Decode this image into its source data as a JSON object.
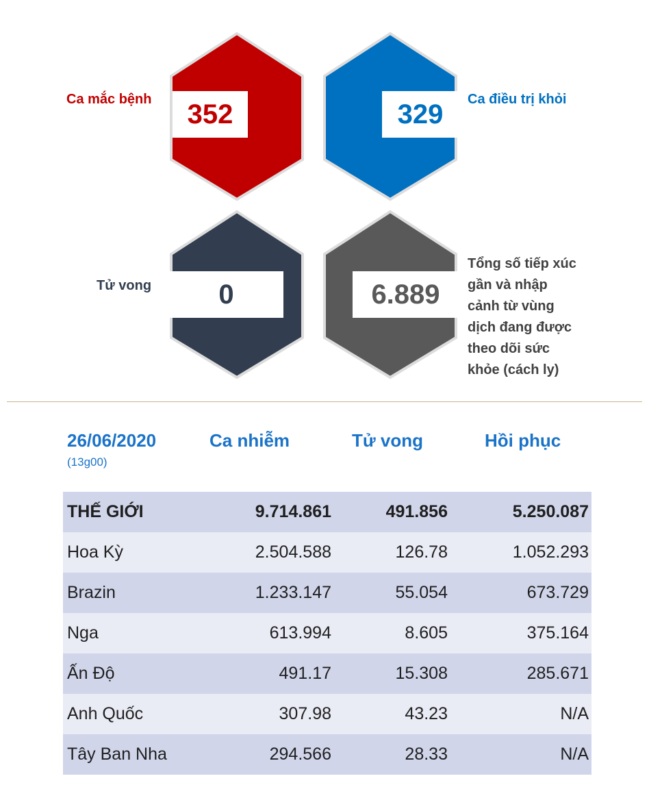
{
  "colors": {
    "cases": "#c00000",
    "recovered": "#0070c0",
    "deaths": "#323e4f",
    "monitored": "#595959",
    "header_blue": "#1a73c8"
  },
  "stats": {
    "cases": {
      "label": "Ca mắc bệnh",
      "value": "352"
    },
    "recovered": {
      "label": "Ca điều trị khỏi",
      "value": "329"
    },
    "deaths": {
      "label": "Tử vong",
      "value": "0"
    },
    "monitored": {
      "label_lines": [
        "Tổng số tiếp xúc",
        "gần và nhập",
        "cảnh từ vùng",
        "dịch đang được",
        "theo dõi sức",
        "khỏe (cách ly)"
      ],
      "value": "6.889"
    }
  },
  "table": {
    "date": "26/06/2020",
    "time": "(13g00)",
    "headers": [
      "Ca nhiễm",
      "Tử vong",
      "Hồi phục"
    ],
    "rows": [
      {
        "name": "THẾ GIỚI",
        "cases": "9.714.861",
        "deaths": "491.856",
        "recovered": "5.250.087"
      },
      {
        "name": "Hoa Kỳ",
        "cases": "2.504.588",
        "deaths": "126.78",
        "recovered": "1.052.293"
      },
      {
        "name": "Brazin",
        "cases": "1.233.147",
        "deaths": "55.054",
        "recovered": "673.729"
      },
      {
        "name": "Nga",
        "cases": "613.994",
        "deaths": "8.605",
        "recovered": "375.164"
      },
      {
        "name": "Ấn Độ",
        "cases": "491.17",
        "deaths": "15.308",
        "recovered": "285.671"
      },
      {
        "name": "Anh Quốc",
        "cases": "307.98",
        "deaths": "43.23",
        "recovered": "N/A"
      },
      {
        "name": "Tây Ban Nha",
        "cases": "294.566",
        "deaths": "28.33",
        "recovered": "N/A"
      }
    ]
  }
}
